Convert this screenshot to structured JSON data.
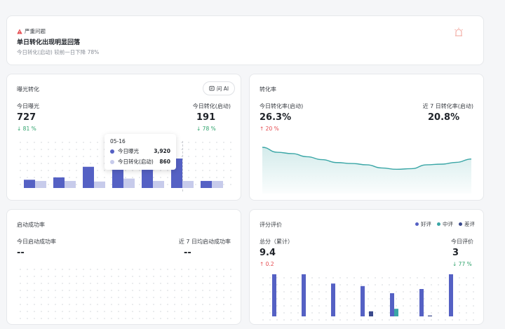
{
  "alert": {
    "level_label": "严重问题",
    "title": "单日转化出现明显回落",
    "desc": "今日转化(启动) 较前一日下降 78%"
  },
  "exposure_card": {
    "title": "曝光转化",
    "ai_button": "问 AI",
    "left_label": "今日曝光",
    "left_value": "727",
    "left_change": "81 %",
    "right_label": "今日转化(启动)",
    "right_value": "191",
    "right_change": "78 %",
    "tooltip": {
      "date": "05-16",
      "row1_label": "今日曝光",
      "row1_value": "3,920",
      "row2_label": "今日转化(启动)",
      "row2_value": "860"
    }
  },
  "rate_card": {
    "title": "转化率",
    "left_label": "今日转化率(启动)",
    "left_value": "26.3%",
    "left_change": "20 %",
    "right_label": "近 7 日转化率(启动)",
    "right_value": "20.8%"
  },
  "launch_card": {
    "title": "启动成功率",
    "left_label": "今日启动成功率",
    "left_value": "--",
    "right_label": "近 7 日均启动成功率",
    "right_value": "--"
  },
  "rating_card": {
    "title": "评分评价",
    "legend": [
      "好评",
      "中评",
      "差评"
    ],
    "left_label": "总分（累计）",
    "left_value": "9.4",
    "left_change": "0.2",
    "right_label": "今日评价",
    "right_value": "3",
    "right_change": "77 %"
  },
  "colors": {
    "primary": "#5561c4",
    "secondary": "#c7cbeb",
    "teal": "#3aa6a6",
    "good": "#5561c4",
    "mid": "#3aa6a6",
    "bad": "#3a4a8c",
    "alert": "#e5484d"
  },
  "chart_data": [
    {
      "type": "bar",
      "series": [
        {
          "name": "今日曝光",
          "values": [
            0.28,
            0.36,
            0.72,
            0.88,
            0.93,
            1.0,
            0.24
          ]
        },
        {
          "name": "今日转化(启动)",
          "values": [
            0.24,
            0.24,
            0.22,
            0.32,
            0.24,
            0.24,
            0.24
          ]
        }
      ]
    },
    {
      "type": "area",
      "values": [
        1.0,
        0.78,
        0.72,
        0.58,
        0.45,
        0.32,
        0.28,
        0.22,
        0.08,
        0.02,
        0.05,
        0.22,
        0.25,
        0.33,
        0.48
      ]
    },
    {
      "type": "bar",
      "series": [
        {
          "name": "好评",
          "values": [
            1.0,
            1.0,
            0.78,
            0.72,
            0.55,
            0.65,
            1.0
          ]
        },
        {
          "name": "中评",
          "values": [
            0,
            0,
            0,
            0,
            0.18,
            0,
            0
          ]
        },
        {
          "name": "差评",
          "values": [
            0,
            0,
            0,
            0.12,
            0,
            0.02,
            0
          ]
        }
      ]
    }
  ]
}
